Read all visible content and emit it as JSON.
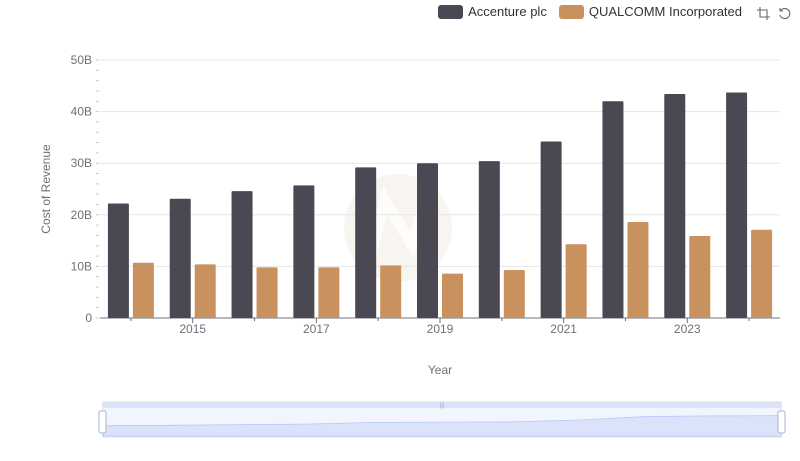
{
  "toolbox": {
    "zoom_icon": "zoom-icon",
    "restore_icon": "restore-icon"
  },
  "chart_data": {
    "type": "bar",
    "title": "",
    "xlabel": "Year",
    "ylabel": "Cost of Revenue",
    "categories": [
      "2014",
      "2015",
      "2016",
      "2017",
      "2018",
      "2019",
      "2020",
      "2021",
      "2022",
      "2023",
      "2024"
    ],
    "x_tick_labels": [
      "2015",
      "2017",
      "2019",
      "2021",
      "2023"
    ],
    "y_tick_labels": [
      "0",
      "10B",
      "20B",
      "30B",
      "40B",
      "50B"
    ],
    "ylim": [
      0,
      50
    ],
    "y_unit": "B",
    "grid": true,
    "legend_position": "top-right",
    "series": [
      {
        "name": "Accenture plc",
        "color": "#4a4953",
        "values": [
          22.2,
          23.1,
          24.6,
          25.7,
          29.2,
          30.0,
          30.4,
          34.2,
          42.0,
          43.4,
          43.7
        ]
      },
      {
        "name": "QUALCOMM Incorporated",
        "color": "#c8915e",
        "values": [
          10.7,
          10.4,
          9.8,
          9.8,
          10.2,
          8.6,
          9.3,
          14.3,
          18.6,
          15.9,
          17.1
        ]
      }
    ],
    "zoom_range": [
      0,
      100
    ]
  }
}
